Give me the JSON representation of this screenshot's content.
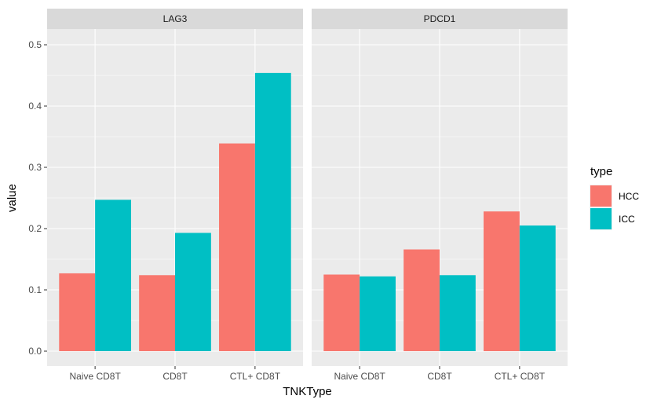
{
  "chart_data": {
    "type": "bar",
    "facets": [
      "LAG3",
      "PDCD1"
    ],
    "categories": [
      "Naive CD8T",
      "CD8T",
      "CTL+ CD8T"
    ],
    "series": [
      {
        "name": "HCC",
        "color": "#F8766D"
      },
      {
        "name": "ICC",
        "color": "#00BFC4"
      }
    ],
    "values": {
      "LAG3": {
        "HCC": [
          0.127,
          0.124,
          0.339
        ],
        "ICC": [
          0.247,
          0.193,
          0.454
        ]
      },
      "PDCD1": {
        "HCC": [
          0.125,
          0.166,
          0.228
        ],
        "ICC": [
          0.122,
          0.124,
          0.205
        ]
      }
    },
    "xlabel": "TNKType",
    "ylabel": "value",
    "ylim": [
      0,
      0.5
    ],
    "yticks": [
      "0.0",
      "0.1",
      "0.2",
      "0.3",
      "0.4",
      "0.5"
    ],
    "legend": {
      "title": "type",
      "placement": "right"
    },
    "grid": true,
    "panel_background": "#EBEBEB",
    "strip_background": "#D9D9D9"
  }
}
